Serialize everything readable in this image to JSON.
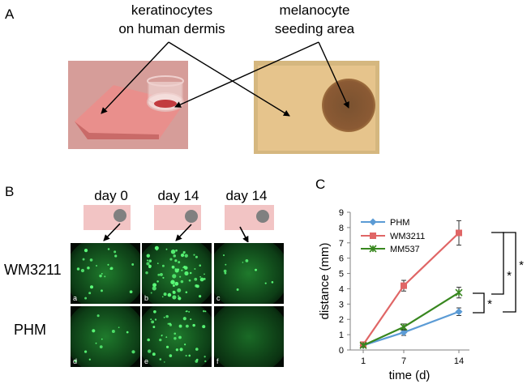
{
  "panel_a": {
    "letter": "A",
    "label_left_line1": "keratinocytes",
    "label_left_line2": "on human dermis",
    "label_right_line1": "melanocyte",
    "label_right_line2": "seeding area"
  },
  "panel_b": {
    "letter": "B",
    "columns": [
      "day 0",
      "day 14",
      "day 14"
    ],
    "rows": [
      "WM3211",
      "PHM"
    ],
    "tile_letters": [
      "a",
      "b",
      "c",
      "d",
      "e",
      "f"
    ],
    "colors": {
      "tile_bg": "#0b2a12",
      "spot": "#5cff7a",
      "schematic_fill": "#f2c4c4",
      "seed_dot": "#808080"
    }
  },
  "panel_c": {
    "letter": "C",
    "significance": [
      "*",
      "*",
      "*"
    ]
  },
  "chart_data": {
    "type": "line",
    "xlabel": "time (d)",
    "ylabel": "distance (mm)",
    "x": [
      1,
      7,
      14
    ],
    "x_tick_labels": [
      "1",
      "7",
      "14"
    ],
    "ylim": [
      0,
      9
    ],
    "y_ticks": [
      0,
      1,
      2,
      3,
      4,
      5,
      6,
      7,
      8,
      9
    ],
    "legend_position": "top-left",
    "grid": false,
    "series": [
      {
        "name": "PHM",
        "values": [
          0.3,
          1.15,
          2.5
        ],
        "errors": [
          0.1,
          0.2,
          0.25
        ],
        "color": "#5b9bd5",
        "marker": "diamond"
      },
      {
        "name": "WM3211",
        "values": [
          0.35,
          4.2,
          7.65
        ],
        "errors": [
          0.1,
          0.35,
          0.8
        ],
        "color": "#e06666",
        "marker": "square"
      },
      {
        "name": "MM537",
        "values": [
          0.3,
          1.5,
          3.75
        ],
        "errors": [
          0.1,
          0.2,
          0.35
        ],
        "color": "#38871f",
        "marker": "x"
      }
    ]
  }
}
